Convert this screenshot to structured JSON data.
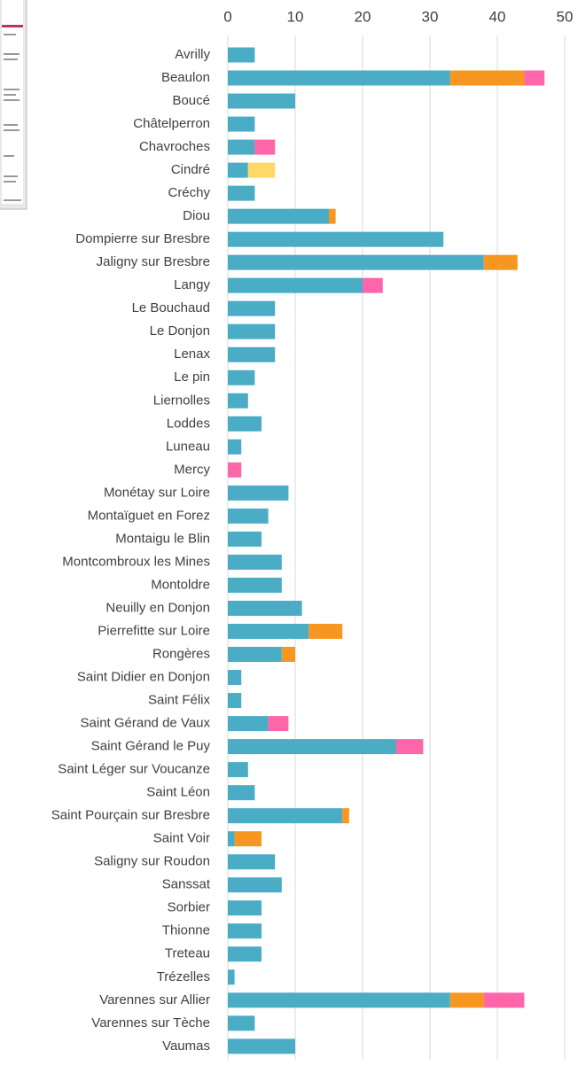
{
  "chart_data": {
    "type": "stacked-bar-horizontal",
    "categories": [
      "Avrilly",
      "Beaulon",
      "Boucé",
      "Châtelperron",
      "Chavroches",
      "Cindré",
      "Créchy",
      "Diou",
      "Dompierre sur Bresbre",
      "Jaligny sur Bresbre",
      "Langy",
      "Le Bouchaud",
      "Le Donjon",
      "Lenax",
      "Le pin",
      "Liernolles",
      "Loddes",
      "Luneau",
      "Mercy",
      "Monétay sur Loire",
      "Montaïguet en Forez",
      "Montaigu le Blin",
      "Montcombroux les Mines",
      "Montoldre",
      "Neuilly en Donjon",
      "Pierrefitte sur Loire",
      "Rongères",
      "Saint Didier en Donjon",
      "Saint Félix",
      "Saint Gérand de Vaux",
      "Saint Gérand le Puy",
      "Saint Léger sur Voucanze",
      "Saint Léon",
      "Saint Pourçain sur Bresbre",
      "Saint Voir",
      "Saligny sur Roudon",
      "Sanssat",
      "Sorbier",
      "Thionne",
      "Treteau",
      "Trézelles",
      "Varennes sur Allier",
      "Varennes sur Tèche",
      "Vaumas"
    ],
    "series": [
      {
        "color": "#4bacc6",
        "values": [
          4,
          33,
          10,
          4,
          4,
          3,
          4,
          15,
          32,
          38,
          20,
          7,
          7,
          7,
          4,
          3,
          5,
          2,
          0,
          9,
          6,
          5,
          8,
          8,
          11,
          12,
          8,
          2,
          2,
          6,
          25,
          3,
          4,
          17,
          1,
          7,
          8,
          5,
          5,
          5,
          1,
          33,
          4,
          10
        ]
      },
      {
        "color": "#f79621",
        "values": [
          0,
          11,
          0,
          0,
          0,
          0,
          0,
          1,
          0,
          5,
          0,
          0,
          0,
          0,
          0,
          0,
          0,
          0,
          0,
          0,
          0,
          0,
          0,
          0,
          0,
          5,
          2,
          0,
          0,
          0,
          0,
          0,
          0,
          1,
          4,
          0,
          0,
          0,
          0,
          0,
          0,
          5,
          0,
          0
        ]
      },
      {
        "color": "#ff66aa",
        "values": [
          0,
          3,
          0,
          0,
          3,
          0,
          0,
          0,
          0,
          0,
          3,
          0,
          0,
          0,
          0,
          0,
          0,
          0,
          2,
          0,
          0,
          0,
          0,
          0,
          0,
          0,
          0,
          0,
          0,
          3,
          4,
          0,
          0,
          0,
          0,
          0,
          0,
          0,
          0,
          0,
          0,
          6,
          0,
          0
        ]
      },
      {
        "color": "#ffd966",
        "values": [
          0,
          0,
          0,
          0,
          0,
          4,
          0,
          0,
          0,
          0,
          0,
          0,
          0,
          0,
          0,
          0,
          0,
          0,
          0,
          0,
          0,
          0,
          0,
          0,
          0,
          0,
          0,
          0,
          0,
          0,
          0,
          0,
          0,
          0,
          0,
          0,
          0,
          0,
          0,
          0,
          0,
          0,
          0,
          0
        ]
      }
    ],
    "xlim": [
      0,
      50
    ],
    "xticks": [
      0,
      10,
      20,
      30,
      40,
      50
    ],
    "grid": true
  }
}
